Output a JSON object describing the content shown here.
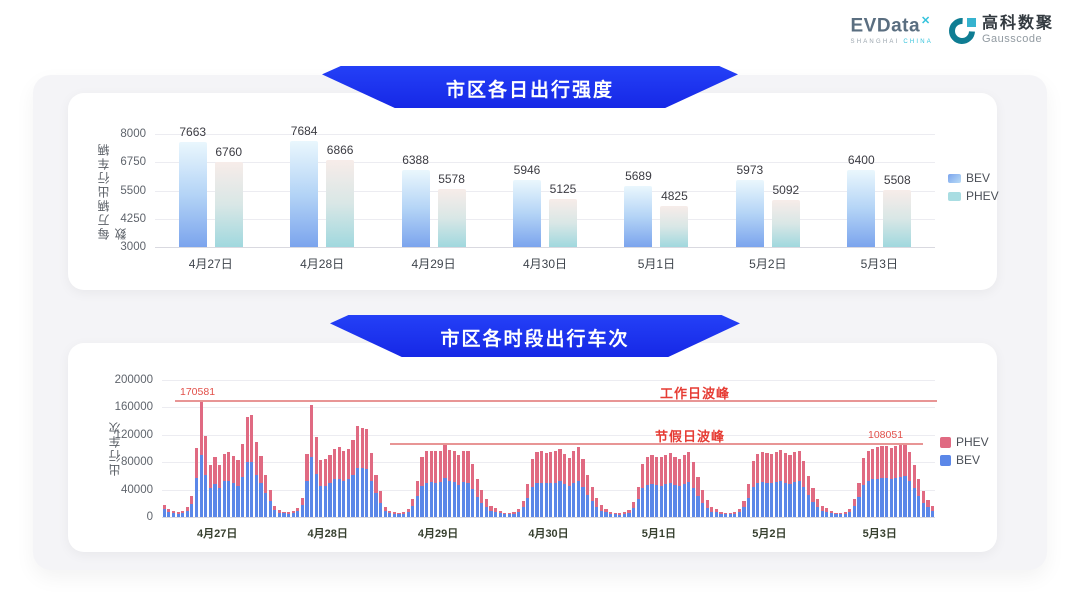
{
  "logo": {
    "evdata_text": "EVData",
    "evdata_mark": "✕",
    "evdata_sub_left": "SHANGHAI ",
    "evdata_sub_right": "CHINA",
    "gausscode_cn": "高科数聚",
    "gausscode_en": "Gausscode"
  },
  "colors": {
    "banner_blue": "#1d33f0",
    "bev_bar_bottom": "#7ba4ed",
    "bev_bar_top": "#eaf7fd",
    "phev_bar_top": "#f7ece9",
    "phev_bar_bottom": "#a0d8de",
    "bev_solid": "#5b87e8",
    "phev_solid": "#e06a82",
    "annotation_red": "#e63c34"
  },
  "chart_data": [
    {
      "type": "bar",
      "title": "市区各日出行强度",
      "xlabel": "",
      "ylabel": "每万辆出行车辆数",
      "ylim": [
        3000,
        8000
      ],
      "yticks": [
        3000,
        4250,
        5500,
        6750,
        8000
      ],
      "grid": true,
      "legend_position": "right",
      "categories": [
        "4月27日",
        "4月28日",
        "4月29日",
        "4月30日",
        "5月1日",
        "5月2日",
        "5月3日"
      ],
      "series": [
        {
          "name": "BEV",
          "gradient": [
            "#eaf7fd",
            "#b4d4f6",
            "#7ba4ed"
          ],
          "values": [
            7663,
            7684,
            6388,
            5946,
            5689,
            5973,
            6400
          ]
        },
        {
          "name": "PHEV",
          "gradient": [
            "#f7ece9",
            "#d9e7e6",
            "#a0d8de"
          ],
          "values": [
            6760,
            6866,
            5578,
            5125,
            4825,
            5092,
            5508
          ]
        }
      ]
    },
    {
      "type": "stacked-bar",
      "title": "市区各时段出行车次",
      "xlabel": "",
      "ylabel": "出行车次",
      "ylim": [
        0,
        200000
      ],
      "yticks": [
        0,
        40000,
        80000,
        120000,
        160000,
        200000
      ],
      "grid": true,
      "legend_position": "right",
      "bars_per_category": 24,
      "categories": [
        "4月27日",
        "4月28日",
        "4月29日",
        "4月30日",
        "5月1日",
        "5月2日",
        "5月3日"
      ],
      "series": [
        {
          "name": "PHEV",
          "color": "#e06a82"
        },
        {
          "name": "BEV",
          "color": "#5b87e8"
        }
      ],
      "bev_hourly": [
        [
          11500,
          7500,
          6000,
          5000,
          5500,
          9000,
          19000,
          57000,
          91000,
          62000,
          42000,
          48000,
          42000,
          52000,
          53000,
          50000,
          46000,
          59000,
          80000,
          81000,
          61000,
          50000,
          35000,
          23000
        ],
        [
          10000,
          6500,
          5200,
          4800,
          5800,
          8500,
          18000,
          52000,
          88000,
          63000,
          45000,
          46000,
          50000,
          55000,
          56000,
          53000,
          55000,
          62000,
          72000,
          71000,
          70000,
          52000,
          35000,
          21000
        ],
        [
          9000,
          5500,
          4300,
          4000,
          5000,
          7500,
          16000,
          30000,
          46000,
          50000,
          51000,
          50000,
          51000,
          57000,
          52000,
          51000,
          47000,
          51000,
          50000,
          41000,
          29000,
          21000,
          14000,
          8500
        ],
        [
          8000,
          5200,
          4000,
          3700,
          4600,
          6800,
          15000,
          28000,
          44000,
          50000,
          50000,
          49000,
          50000,
          50000,
          52000,
          48000,
          45000,
          50000,
          53000,
          44000,
          32000,
          23000,
          15000,
          9000
        ],
        [
          7500,
          5000,
          3700,
          3400,
          4300,
          6200,
          13500,
          26000,
          42000,
          47000,
          48000,
          47000,
          46000,
          48000,
          50000,
          47000,
          45000,
          48000,
          51000,
          43000,
          31000,
          21000,
          13000,
          8000
        ],
        [
          7500,
          5000,
          4000,
          3700,
          4600,
          6800,
          15000,
          28000,
          44000,
          49000,
          51000,
          50000,
          49000,
          51000,
          53000,
          50000,
          48000,
          51000,
          52000,
          44000,
          32000,
          22000,
          14000,
          8500
        ],
        [
          8000,
          5200,
          4000,
          3700,
          5000,
          7500,
          16000,
          29000,
          47000,
          53000,
          55000,
          56000,
          57000,
          57000,
          56000,
          57000,
          58000,
          60000,
          52000,
          42000,
          31000,
          21000,
          14000,
          9000
        ]
      ],
      "total_hourly": [
        [
          18000,
          12000,
          9500,
          8000,
          9000,
          14000,
          30000,
          101000,
          170581,
          119000,
          76000,
          87000,
          76000,
          92000,
          95000,
          89000,
          83000,
          106000,
          146000,
          149000,
          110000,
          89000,
          62000,
          40000
        ],
        [
          16000,
          10000,
          8000,
          7500,
          9000,
          13000,
          28000,
          92000,
          164000,
          117000,
          83000,
          84000,
          90000,
          100000,
          102000,
          96000,
          100000,
          113000,
          133000,
          130000,
          128000,
          93000,
          62000,
          38000
        ],
        [
          15000,
          9000,
          7000,
          6500,
          8000,
          12000,
          26000,
          52000,
          88000,
          96000,
          97000,
          96000,
          97000,
          108000,
          98000,
          97000,
          90000,
          97000,
          96000,
          78000,
          56000,
          40000,
          26000,
          16000
        ],
        [
          13000,
          8500,
          6500,
          6000,
          7500,
          11000,
          24000,
          48000,
          84000,
          95000,
          96000,
          94000,
          95000,
          96000,
          100000,
          92000,
          86000,
          96000,
          102000,
          84000,
          62000,
          44000,
          28000,
          17000
        ],
        [
          12000,
          8000,
          6000,
          5500,
          7000,
          10000,
          22000,
          44000,
          78000,
          88000,
          90000,
          88000,
          87000,
          90000,
          93000,
          88000,
          84000,
          90000,
          95000,
          80000,
          58000,
          40000,
          25000,
          15000
        ],
        [
          12000,
          8000,
          6500,
          6000,
          7500,
          11000,
          24000,
          48000,
          82000,
          92000,
          95000,
          93000,
          92000,
          95000,
          98000,
          94000,
          90000,
          95000,
          97000,
          82000,
          60000,
          42000,
          26000,
          16000
        ],
        [
          13000,
          8500,
          6500,
          6000,
          8000,
          12000,
          26000,
          50000,
          86000,
          96000,
          100000,
          102000,
          104000,
          103000,
          101000,
          104000,
          106000,
          108051,
          95000,
          76000,
          56000,
          38000,
          25000,
          16000
        ]
      ],
      "annotations": [
        {
          "value": 170581,
          "label": "170581",
          "text": "工作日波峰"
        },
        {
          "value": 108051,
          "label": "108051",
          "text": "节假日波峰"
        }
      ]
    }
  ]
}
